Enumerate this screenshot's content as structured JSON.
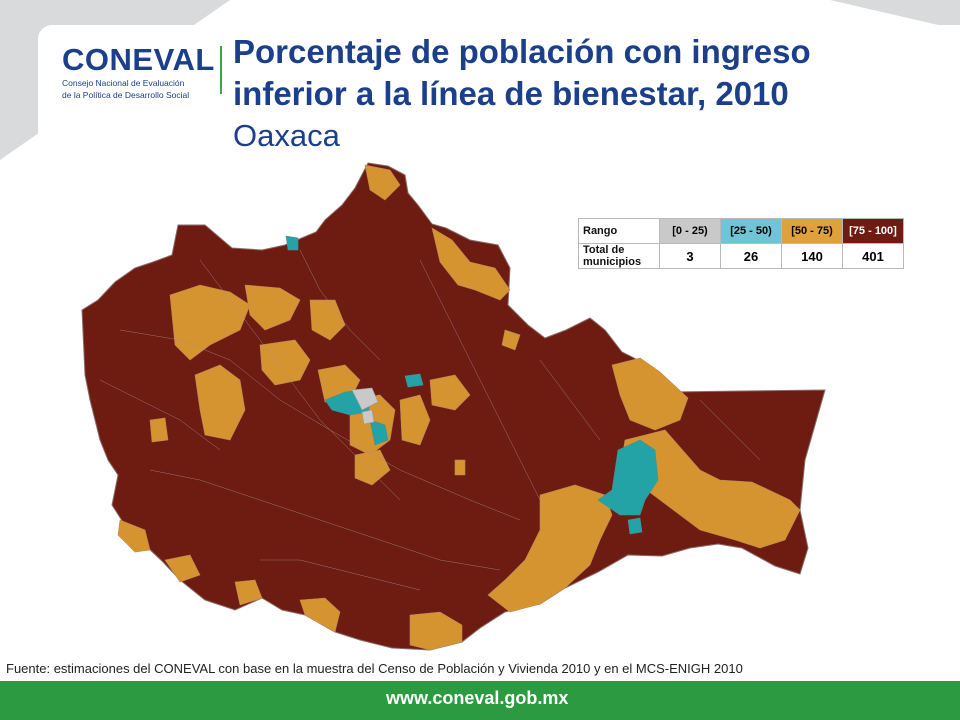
{
  "logo": {
    "wordmark": "CONEVAL",
    "line1": "Consejo Nacional de Evaluación",
    "line2": "de la Política de Desarrollo Social"
  },
  "title": {
    "line1": "Porcentaje de población con ingreso",
    "line2": "inferior a la línea de bienestar, 2010",
    "subtitle": "Oaxaca"
  },
  "legend": {
    "row1_label": "Rango",
    "row2_label": "Total de municipios",
    "ranges": [
      {
        "label": "[0 - 25)",
        "count": "3",
        "color": "#c9c9c9",
        "text_color": "#111111"
      },
      {
        "label": "[25 - 50)",
        "count": "26",
        "color": "#6fc5d6",
        "text_color": "#111111"
      },
      {
        "label": "[50 - 75)",
        "count": "140",
        "color": "#e0a03c",
        "text_color": "#111111"
      },
      {
        "label": "[75 - 100]",
        "count": "401",
        "color": "#6e1b12",
        "text_color": "#ffffff"
      }
    ]
  },
  "map": {
    "region": "Oaxaca",
    "colors": {
      "high": "#6e1b12",
      "mid_high": "#d5942f",
      "mid_low": "#23a3a6",
      "border": "#b7a6a3"
    }
  },
  "source": "Fuente: estimaciones del CONEVAL con base en la muestra del Censo de Población y Vivienda 2010 y en el MCS-ENIGH 2010",
  "footer": {
    "url": "www.coneval.gob.mx",
    "bar_color": "#2b9a40"
  }
}
